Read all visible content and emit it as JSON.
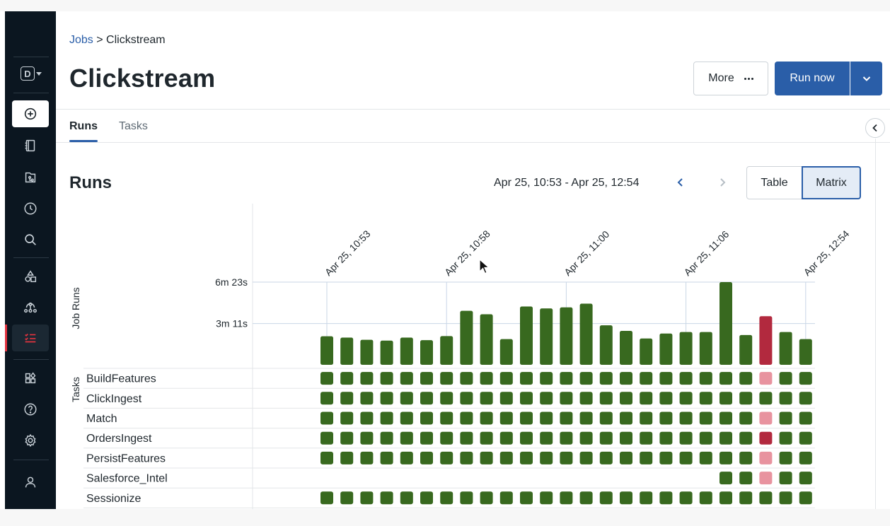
{
  "breadcrumb": {
    "parent": "Jobs",
    "separator": ">",
    "current": "Clickstream"
  },
  "page_title": "Clickstream",
  "header": {
    "more_label": "More",
    "run_label": "Run now"
  },
  "tabs": [
    {
      "label": "Runs",
      "active": true
    },
    {
      "label": "Tasks",
      "active": false
    }
  ],
  "runs": {
    "title": "Runs",
    "date_range": "Apr 25, 10:53 - Apr 25, 12:54",
    "view_options": [
      {
        "label": "Table",
        "active": false
      },
      {
        "label": "Matrix",
        "active": true
      }
    ]
  },
  "sidebar": {
    "workspace_letter": "D",
    "items": [
      "new-icon",
      "notebook-icon",
      "repos-icon",
      "history-icon",
      "search-icon",
      "catalog-icon",
      "clusters-icon",
      "jobs-icon",
      "marketplace-icon",
      "help-icon",
      "settings-icon",
      "user-icon"
    ]
  },
  "colors": {
    "success": "#38691f",
    "failed": "#b2293e",
    "upstream_failed": "#e8939f",
    "accent": "#2a5ea8"
  },
  "chart_data": {
    "type": "bar",
    "ylabel": "Job Runs",
    "y_ticks": [
      {
        "label": "6m 23s",
        "seconds": 383
      },
      {
        "label": "3m 11s",
        "seconds": 191
      }
    ],
    "ylim": [
      0,
      383
    ],
    "x_labels": [
      {
        "label": "Apr 25, 10:53",
        "index": 0
      },
      {
        "label": "Apr 25, 10:58",
        "index": 6
      },
      {
        "label": "Apr 25, 11:00",
        "index": 12
      },
      {
        "label": "Apr 25, 11:06",
        "index": 18
      },
      {
        "label": "Apr 25, 12:54",
        "index": 24
      }
    ],
    "runs": [
      {
        "duration": 132,
        "status": "success"
      },
      {
        "duration": 126,
        "status": "success"
      },
      {
        "duration": 116,
        "status": "success"
      },
      {
        "duration": 112,
        "status": "success"
      },
      {
        "duration": 126,
        "status": "success"
      },
      {
        "duration": 114,
        "status": "success"
      },
      {
        "duration": 133,
        "status": "success"
      },
      {
        "duration": 250,
        "status": "success"
      },
      {
        "duration": 234,
        "status": "success"
      },
      {
        "duration": 119,
        "status": "success"
      },
      {
        "duration": 270,
        "status": "success"
      },
      {
        "duration": 261,
        "status": "success"
      },
      {
        "duration": 266,
        "status": "success"
      },
      {
        "duration": 283,
        "status": "success"
      },
      {
        "duration": 183,
        "status": "success"
      },
      {
        "duration": 157,
        "status": "success"
      },
      {
        "duration": 122,
        "status": "success"
      },
      {
        "duration": 145,
        "status": "success"
      },
      {
        "duration": 152,
        "status": "success"
      },
      {
        "duration": 152,
        "status": "success"
      },
      {
        "duration": 383,
        "status": "success"
      },
      {
        "duration": 138,
        "status": "success"
      },
      {
        "duration": 225,
        "status": "failed"
      },
      {
        "duration": 152,
        "status": "success"
      },
      {
        "duration": 119,
        "status": "success"
      }
    ],
    "tasks_label": "Tasks",
    "tasks": [
      {
        "name": "BuildFeatures",
        "start": 0,
        "statuses": {
          "22": "upstream_failed"
        }
      },
      {
        "name": "ClickIngest",
        "start": 0,
        "statuses": {}
      },
      {
        "name": "Match",
        "start": 0,
        "statuses": {
          "22": "upstream_failed"
        }
      },
      {
        "name": "OrdersIngest",
        "start": 0,
        "statuses": {
          "22": "failed"
        }
      },
      {
        "name": "PersistFeatures",
        "start": 0,
        "statuses": {
          "22": "upstream_failed"
        }
      },
      {
        "name": "Salesforce_Intel",
        "start": 20,
        "statuses": {
          "22": "upstream_failed"
        }
      },
      {
        "name": "Sessionize",
        "start": 0,
        "statuses": {}
      }
    ]
  }
}
